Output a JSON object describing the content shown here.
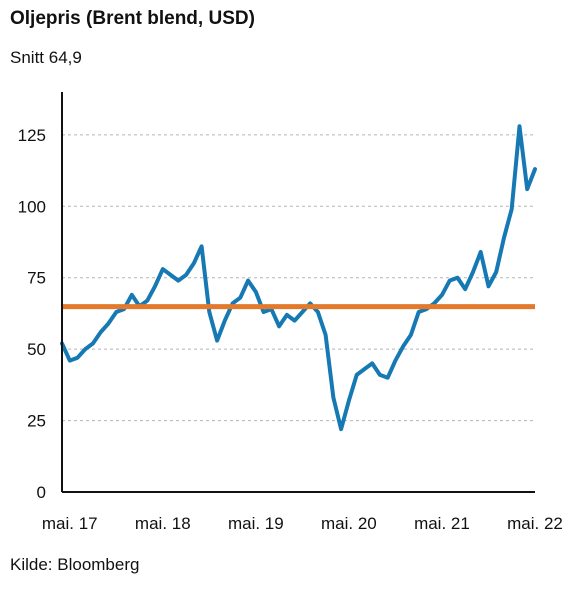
{
  "title": "Oljepris (Brent blend, USD)",
  "subtitle": "Snitt 64,9",
  "source": "Kilde: Bloomberg",
  "colors": {
    "series": "#1679b4",
    "average": "#e2792b",
    "grid": "#b5b5b5",
    "axis": "#111111"
  },
  "chart_data": {
    "type": "line",
    "title": "Oljepris (Brent blend, USD)",
    "subtitle": "Snitt 64,9",
    "xlabel": "",
    "ylabel": "",
    "ylim": [
      0,
      140
    ],
    "yticks": [
      0,
      25,
      50,
      75,
      100,
      125
    ],
    "xlim": [
      "2017-04",
      "2022-05"
    ],
    "xticks": [
      {
        "label": "mai. 17",
        "date": "2017-05"
      },
      {
        "label": "mai. 18",
        "date": "2018-05"
      },
      {
        "label": "mai. 19",
        "date": "2019-05"
      },
      {
        "label": "mai. 20",
        "date": "2020-05"
      },
      {
        "label": "mai. 21",
        "date": "2021-05"
      },
      {
        "label": "mai. 22",
        "date": "2022-05"
      }
    ],
    "grid": true,
    "average": 64.9,
    "series": [
      {
        "points": [
          [
            "2017-04",
            52
          ],
          [
            "2017-05",
            46
          ],
          [
            "2017-06",
            47
          ],
          [
            "2017-07",
            50
          ],
          [
            "2017-08",
            52
          ],
          [
            "2017-09",
            56
          ],
          [
            "2017-10",
            59
          ],
          [
            "2017-11",
            63
          ],
          [
            "2017-12",
            64
          ],
          [
            "2018-01",
            69
          ],
          [
            "2018-02",
            65
          ],
          [
            "2018-03",
            67
          ],
          [
            "2018-04",
            72
          ],
          [
            "2018-05",
            78
          ],
          [
            "2018-06",
            76
          ],
          [
            "2018-07",
            74
          ],
          [
            "2018-08",
            76
          ],
          [
            "2018-09",
            80
          ],
          [
            "2018-10",
            86
          ],
          [
            "2018-11",
            63
          ],
          [
            "2018-12",
            53
          ],
          [
            "2019-01",
            60
          ],
          [
            "2019-02",
            66
          ],
          [
            "2019-03",
            68
          ],
          [
            "2019-04",
            74
          ],
          [
            "2019-05",
            70
          ],
          [
            "2019-06",
            63
          ],
          [
            "2019-07",
            64
          ],
          [
            "2019-08",
            58
          ],
          [
            "2019-09",
            62
          ],
          [
            "2019-10",
            60
          ],
          [
            "2019-11",
            63
          ],
          [
            "2019-12",
            66
          ],
          [
            "2020-01",
            63
          ],
          [
            "2020-02",
            55
          ],
          [
            "2020-03",
            33
          ],
          [
            "2020-04",
            22
          ],
          [
            "2020-05",
            32
          ],
          [
            "2020-06",
            41
          ],
          [
            "2020-07",
            43
          ],
          [
            "2020-08",
            45
          ],
          [
            "2020-09",
            41
          ],
          [
            "2020-10",
            40
          ],
          [
            "2020-11",
            46
          ],
          [
            "2020-12",
            51
          ],
          [
            "2021-01",
            55
          ],
          [
            "2021-02",
            63
          ],
          [
            "2021-03",
            64
          ],
          [
            "2021-04",
            66
          ],
          [
            "2021-05",
            69
          ],
          [
            "2021-06",
            74
          ],
          [
            "2021-07",
            75
          ],
          [
            "2021-08",
            71
          ],
          [
            "2021-09",
            77
          ],
          [
            "2021-10",
            84
          ],
          [
            "2021-11",
            72
          ],
          [
            "2021-12",
            77
          ],
          [
            "2022-01",
            89
          ],
          [
            "2022-02",
            99
          ],
          [
            "2022-03",
            128
          ],
          [
            "2022-04",
            106
          ],
          [
            "2022-05",
            113
          ]
        ]
      }
    ]
  }
}
